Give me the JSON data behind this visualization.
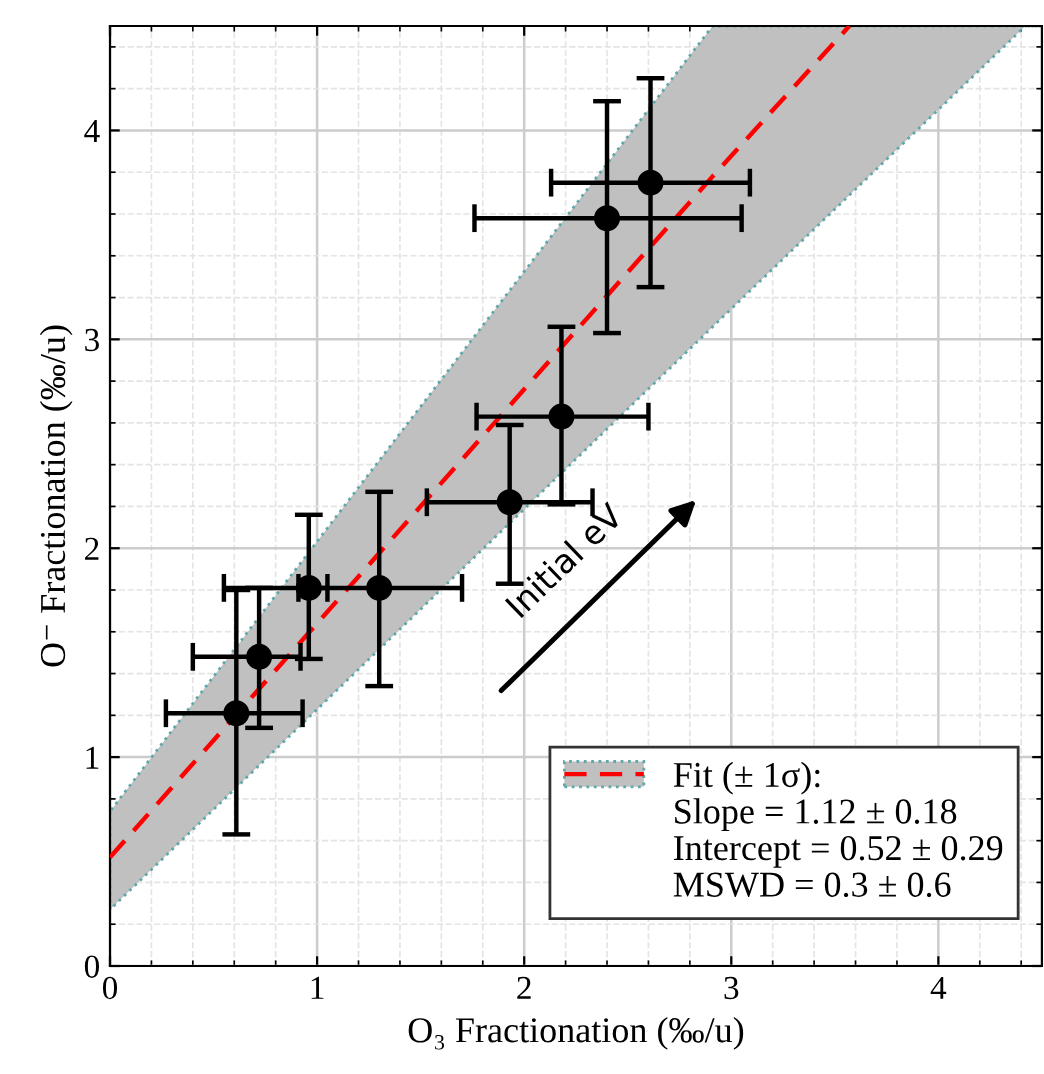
{
  "chart_data": {
    "type": "scatter",
    "xlabel": "O₃ Fractionation (‰/u)",
    "ylabel": "O⁻ Fractionation (‰/u)",
    "xlim": [
      0,
      4.5
    ],
    "ylim": [
      0,
      4.5
    ],
    "xticks": [
      0,
      1,
      2,
      3,
      4
    ],
    "yticks": [
      0,
      1,
      2,
      3,
      4
    ],
    "grid": true,
    "legend": "bottom right",
    "series": [
      {
        "type": "line",
        "name": "Fit (± 1σ):",
        "color": "#ff0000",
        "line_style": "dashed",
        "marker": "none",
        "x": [
          0,
          2.91,
          3.57,
          4.42,
          4.5
        ],
        "values": [
          0.52,
          3.78,
          4.5,
          null,
          null
        ],
        "lower": [
          0.27,
          3.06,
          3.69,
          4.5,
          4.5
        ],
        "upper": [
          0.74,
          4.5,
          4.5,
          4.5,
          4.5
        ]
      },
      {
        "color": "#000000",
        "marker": "circle",
        "x": [
          0.61,
          0.72,
          0.96,
          1.3,
          1.93,
          2.18,
          2.4,
          2.61
        ],
        "values": [
          1.21,
          1.48,
          1.81,
          1.81,
          2.22,
          2.63,
          3.58,
          3.75
        ],
        "errors": [
          [
            0.63,
            1.8
          ],
          [
            1.14,
            1.81
          ],
          [
            1.47,
            2.16
          ],
          [
            1.34,
            2.27
          ],
          [
            1.83,
            2.59
          ],
          [
            2.21,
            3.06
          ],
          [
            3.03,
            4.14
          ],
          [
            3.25,
            4.25
          ]
        ],
        "xerrors": [
          [
            0.27,
            0.93
          ],
          [
            0.4,
            0.92
          ],
          [
            0.55,
            1.05
          ],
          [
            0.91,
            1.7
          ],
          [
            1.53,
            2.33
          ],
          [
            1.77,
            2.6
          ],
          [
            1.76,
            3.05
          ],
          [
            2.13,
            3.09
          ]
        ]
      }
    ],
    "annotations": [
      "Slope = 1.12 ± 0.18",
      "Intercept = 0.52 ± 0.29",
      "MSWD = 0.3 ± 0.6",
      "Initial eV"
    ]
  }
}
